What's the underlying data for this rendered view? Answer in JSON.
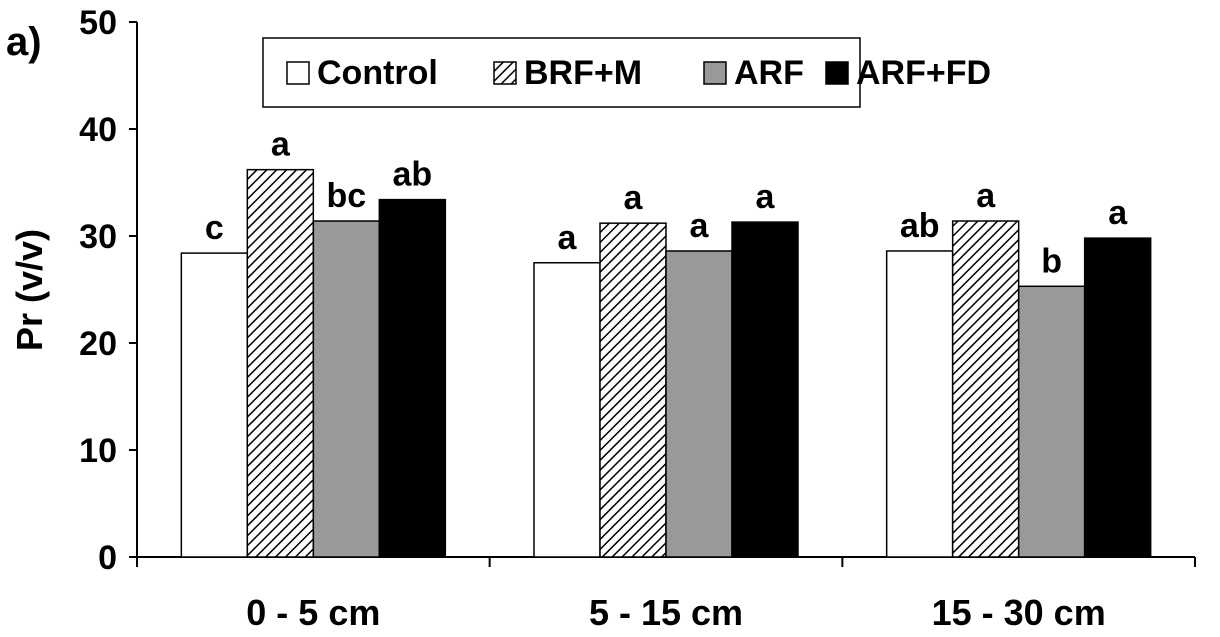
{
  "panel_label": "a)",
  "chart_data": {
    "type": "bar",
    "title": "",
    "xlabel": "",
    "ylabel": "Pr (v/v)",
    "ylim": [
      0,
      50
    ],
    "yticks": [
      0,
      10,
      20,
      30,
      40,
      50
    ],
    "grid": false,
    "legend_position": "top-center",
    "categories": [
      "0 - 5 cm",
      "5 - 15 cm",
      "15 - 30 cm"
    ],
    "series": [
      {
        "name": "Control",
        "style": "white",
        "values": [
          28.4,
          27.5,
          28.6
        ],
        "letters": [
          "c",
          "a",
          "ab"
        ]
      },
      {
        "name": "BRF+M",
        "style": "hatched",
        "values": [
          36.2,
          31.2,
          31.4
        ],
        "letters": [
          "a",
          "a",
          "a"
        ]
      },
      {
        "name": "ARF",
        "style": "gray",
        "values": [
          31.4,
          28.6,
          25.3
        ],
        "letters": [
          "bc",
          "a",
          "b"
        ]
      },
      {
        "name": "ARF+FD",
        "style": "black",
        "values": [
          33.4,
          31.3,
          29.8
        ],
        "letters": [
          "ab",
          "a",
          "a"
        ]
      }
    ]
  },
  "colors": {
    "white": "#ffffff",
    "gray": "#999999",
    "black": "#000000",
    "axis": "#000000"
  }
}
